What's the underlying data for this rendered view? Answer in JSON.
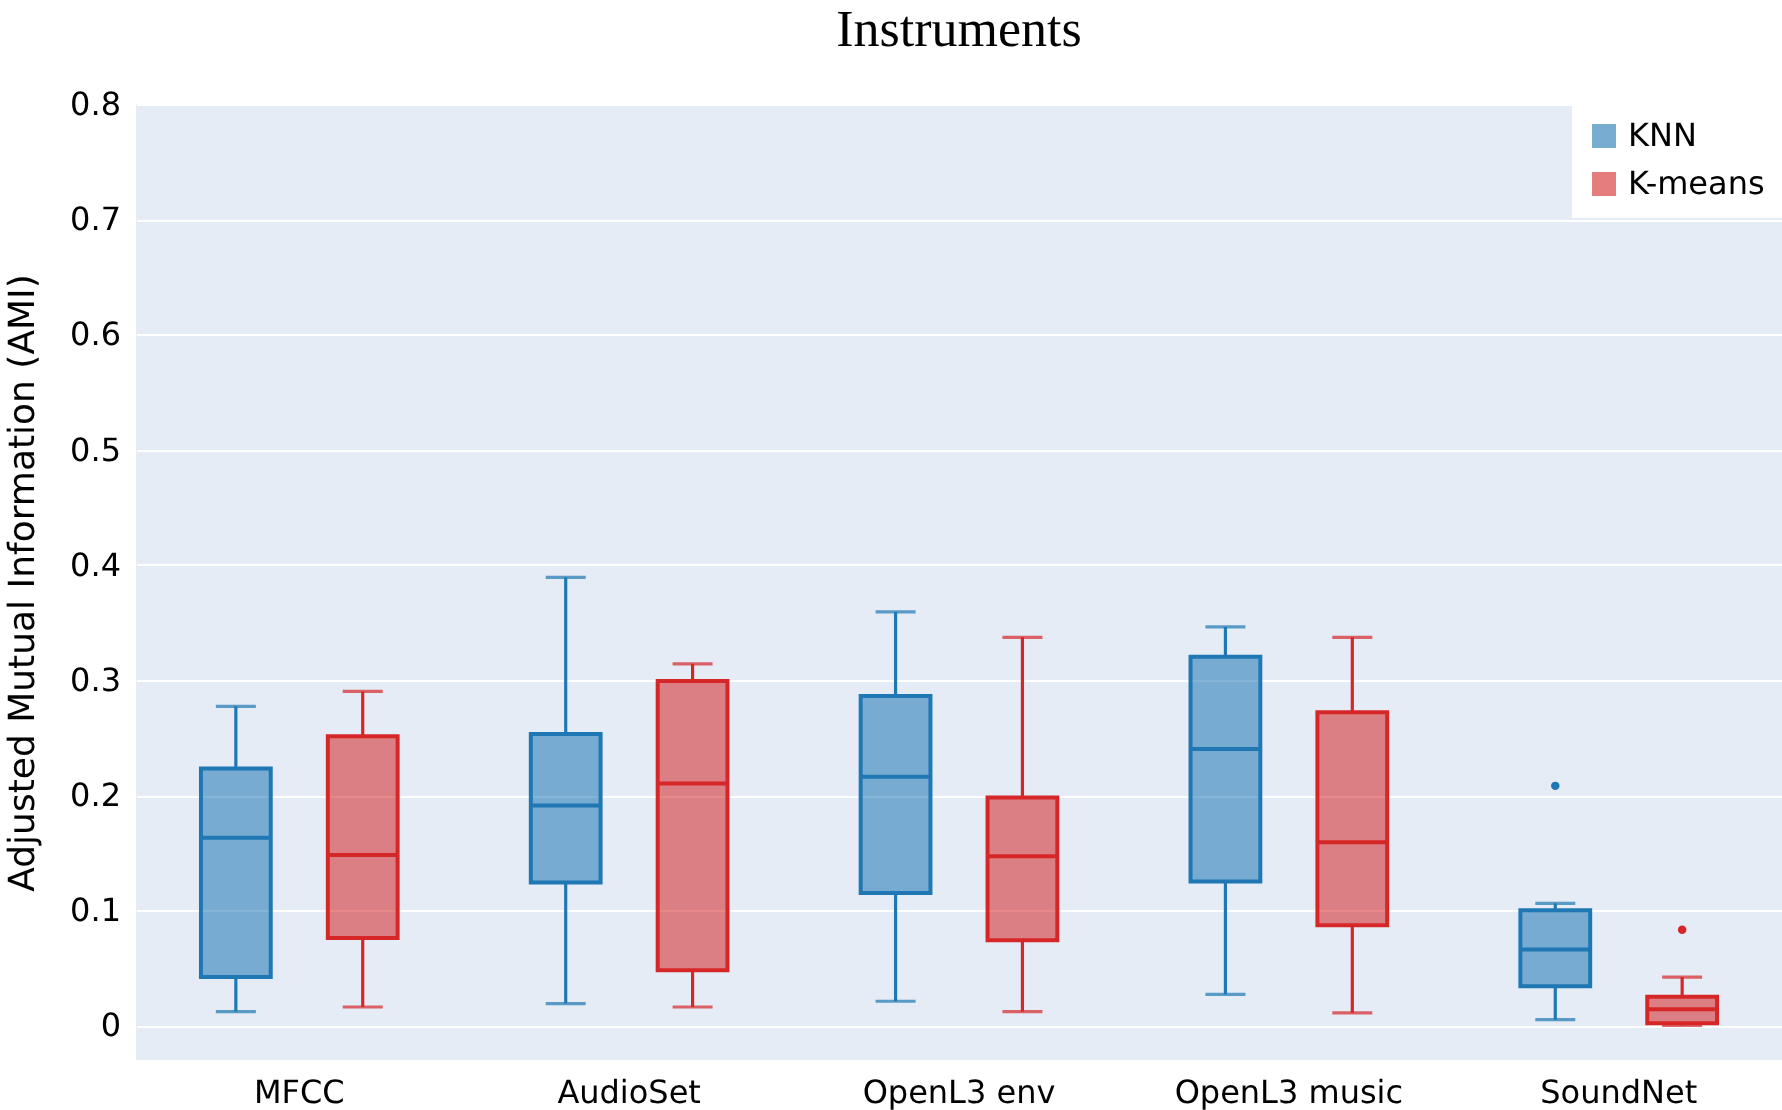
{
  "chart_data": {
    "type": "box",
    "title": "Instruments",
    "ylabel": "Adjusted Mutual Information (AMI)",
    "categories": [
      "MFCC",
      "AudioSet",
      "OpenL3 env",
      "OpenL3 music",
      "SoundNet"
    ],
    "ylim": [
      -0.03,
      0.8
    ],
    "yticks": [
      {
        "value": 0,
        "label": "0"
      },
      0.1,
      0.2,
      0.3,
      0.4,
      0.5,
      0.6,
      0.7,
      0.8
    ],
    "grid": "y",
    "legend": "top right",
    "series": [
      {
        "name": "KNN",
        "color": "#1f77b4",
        "boxes": [
          {
            "low": 0.012,
            "q1": 0.042,
            "median": 0.163,
            "q3": 0.223,
            "high": 0.277
          },
          {
            "low": 0.019,
            "q1": 0.124,
            "median": 0.191,
            "q3": 0.253,
            "high": 0.389
          },
          {
            "low": 0.021,
            "q1": 0.115,
            "median": 0.216,
            "q3": 0.286,
            "high": 0.359
          },
          {
            "low": 0.027,
            "q1": 0.125,
            "median": 0.24,
            "q3": 0.32,
            "high": 0.346
          },
          {
            "low": 0.005,
            "q1": 0.034,
            "median": 0.066,
            "q3": 0.1,
            "high": 0.106,
            "outliers": [
              0.208
            ]
          }
        ]
      },
      {
        "name": "K-means",
        "color": "#d62728",
        "boxes": [
          {
            "low": 0.016,
            "q1": 0.076,
            "median": 0.148,
            "q3": 0.251,
            "high": 0.29
          },
          {
            "low": 0.016,
            "q1": 0.048,
            "median": 0.21,
            "q3": 0.299,
            "high": 0.314
          },
          {
            "low": 0.012,
            "q1": 0.074,
            "median": 0.147,
            "q3": 0.198,
            "high": 0.337
          },
          {
            "low": 0.011,
            "q1": 0.087,
            "median": 0.159,
            "q3": 0.272,
            "high": 0.337
          },
          {
            "low": 0,
            "q1": 0.002,
            "median": 0.014,
            "q3": 0.025,
            "high": 0.042,
            "outliers": [
              0.083
            ]
          }
        ]
      }
    ]
  }
}
